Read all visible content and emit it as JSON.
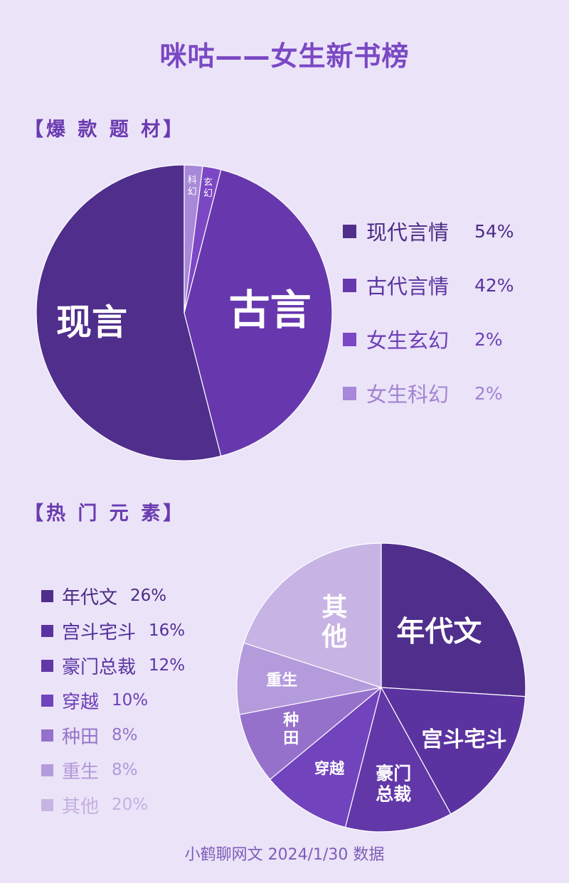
{
  "title": "咪咕——女生新书榜",
  "section1_title": "【爆 款 题 材】",
  "section2_title": "【热 门 元 素】",
  "footer": "小鹤聊网文 2024/1/30 数据",
  "chart_data": [
    {
      "type": "pie",
      "categories": [
        "现代言情",
        "古代言情",
        "女生玄幻",
        "女生科幻"
      ],
      "values": [
        54,
        42,
        2,
        2
      ],
      "value_labels": [
        "54%",
        "42%",
        "2%",
        "2%"
      ],
      "slice_labels": [
        "现言",
        "古言",
        "玄幻",
        "科幻"
      ],
      "colors": [
        "#4f2e8c",
        "#6738ad",
        "#7b47c4",
        "#a888d8"
      ],
      "legend_text_colors": [
        "#4a2b84",
        "#5a33a0",
        "#6d3fb8",
        "#a184d2"
      ],
      "legend_position": "right"
    },
    {
      "type": "pie",
      "categories": [
        "年代文",
        "宫斗宅斗",
        "豪门总裁",
        "穿越",
        "种田",
        "重生",
        "其他"
      ],
      "values": [
        26,
        16,
        12,
        10,
        8,
        8,
        20
      ],
      "value_labels": [
        "26%",
        "16%",
        "12%",
        "10%",
        "8%",
        "8%",
        "20%"
      ],
      "slice_labels": [
        "年代文",
        "宫斗宅斗",
        "豪门\n总裁",
        "穿越",
        "种\n田",
        "重生",
        "其\n他"
      ],
      "colors": [
        "#4f2e8c",
        "#5b33a0",
        "#6237a8",
        "#7143bd",
        "#9671cc",
        "#b49bdc",
        "#c8b4e4"
      ],
      "legend_text_colors": [
        "#4a2b84",
        "#52309a",
        "#5a34a2",
        "#6c3fb6",
        "#9574c8",
        "#b199d8",
        "#c4b0e0"
      ],
      "legend_position": "left"
    }
  ]
}
